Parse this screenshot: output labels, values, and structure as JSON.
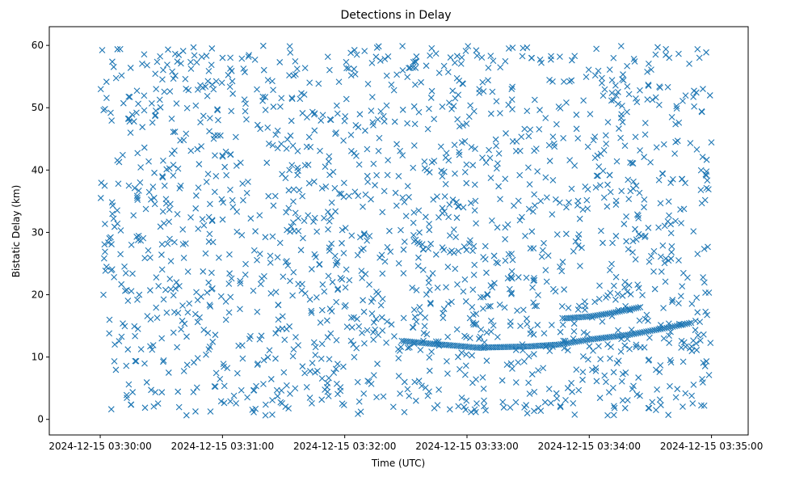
{
  "chart_data": {
    "type": "scatter",
    "title": "Detections in Delay",
    "xlabel": "Time (UTC)",
    "ylabel": "Bistatic Delay (km)",
    "marker": "x",
    "color": "#1f77b4",
    "grid": false,
    "legend": "none",
    "x_start": "2024-12-15 03:30:00",
    "x_end": "2024-12-15 03:35:00",
    "xlim": [
      "2024-12-15 03:29:35",
      "2024-12-15 03:35:18"
    ],
    "ylim": [
      -2.5,
      63
    ],
    "xticks": [
      "2024-12-15 03:30:00",
      "2024-12-15 03:31:00",
      "2024-12-15 03:32:00",
      "2024-12-15 03:33:00",
      "2024-12-15 03:34:00",
      "2024-12-15 03:35:00"
    ],
    "yticks": [
      0,
      10,
      20,
      30,
      40,
      50,
      60
    ],
    "noise_count": 1700,
    "noise_y_range": [
      0.5,
      60
    ],
    "target_track": [
      {
        "t": "2024-12-15 03:32:27",
        "y": 11.0
      },
      {
        "t": "2024-12-15 03:32:28",
        "y": 12.6
      },
      {
        "t": "2024-12-15 03:32:40",
        "y": 12.2
      },
      {
        "t": "2024-12-15 03:32:55",
        "y": 11.8
      },
      {
        "t": "2024-12-15 03:33:05",
        "y": 11.5
      },
      {
        "t": "2024-12-15 03:33:30",
        "y": 11.7
      },
      {
        "t": "2024-12-15 03:33:45",
        "y": 12.0
      },
      {
        "t": "2024-12-15 03:34:00",
        "y": 12.8
      },
      {
        "t": "2024-12-15 03:34:20",
        "y": 13.6
      },
      {
        "t": "2024-12-15 03:34:40",
        "y": 14.8
      },
      {
        "t": "2024-12-15 03:34:50",
        "y": 15.5
      }
    ],
    "secondary_track": [
      {
        "t": "2024-12-15 03:33:48",
        "y": 16.2
      },
      {
        "t": "2024-12-15 03:34:00",
        "y": 16.5
      },
      {
        "t": "2024-12-15 03:34:10",
        "y": 17.0
      },
      {
        "t": "2024-12-15 03:34:25",
        "y": 18.0
      }
    ]
  }
}
